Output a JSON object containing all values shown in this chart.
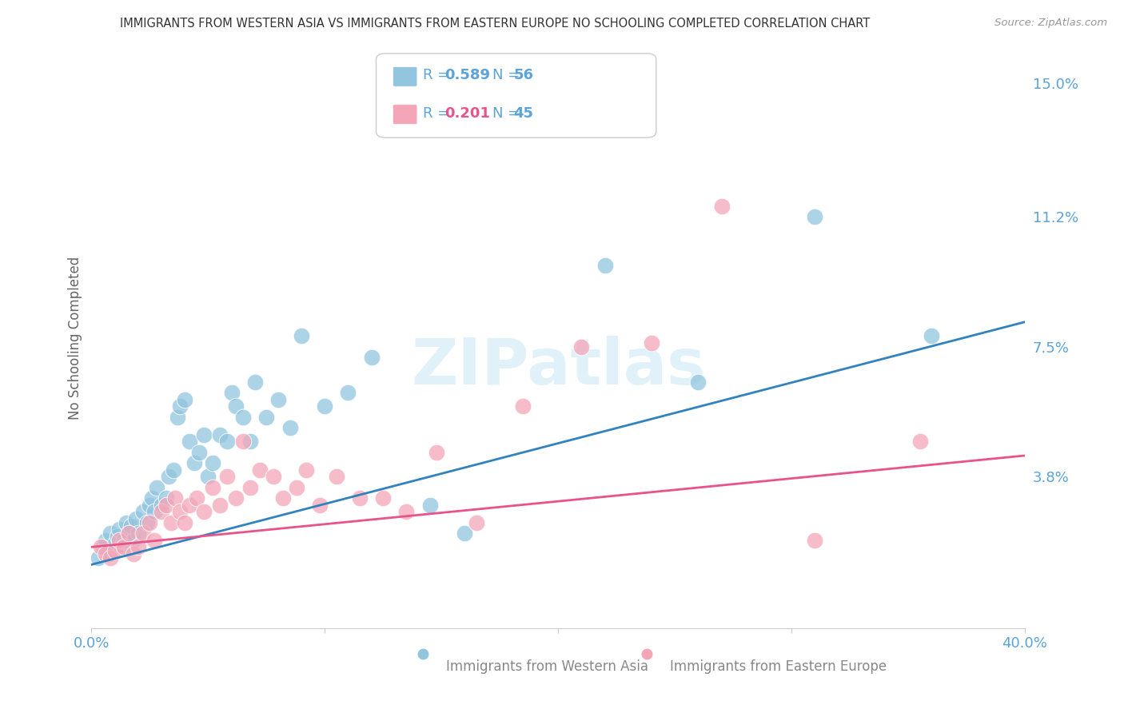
{
  "title": "IMMIGRANTS FROM WESTERN ASIA VS IMMIGRANTS FROM EASTERN EUROPE NO SCHOOLING COMPLETED CORRELATION CHART",
  "source": "Source: ZipAtlas.com",
  "ylabel": "No Schooling Completed",
  "ytick_positions": [
    0.0,
    0.038,
    0.075,
    0.112,
    0.15
  ],
  "ytick_labels": [
    "",
    "3.8%",
    "7.5%",
    "11.2%",
    "15.0%"
  ],
  "xticks": [
    0.0,
    0.1,
    0.2,
    0.3,
    0.4
  ],
  "xlim": [
    0.0,
    0.4
  ],
  "ylim": [
    -0.005,
    0.16
  ],
  "legend_r1": "R = 0.589",
  "legend_n1": "N = 56",
  "legend_r2": "R = 0.201",
  "legend_n2": "N = 45",
  "watermark": "ZIPatlas",
  "color_blue": "#92c5de",
  "color_pink": "#f4a6b8",
  "line_color_blue": "#3182bd",
  "line_color_pink": "#e8538a",
  "background_color": "#ffffff",
  "grid_color": "#d0d0d0",
  "title_color": "#333333",
  "axis_label_color": "#5ba3d9",
  "legend_text_color": "#555555",
  "legend_r_color": "#5ba3d9",
  "legend_n_color": "#5ba3d9",
  "blue_scatter_x": [
    0.003,
    0.005,
    0.006,
    0.007,
    0.008,
    0.009,
    0.01,
    0.011,
    0.012,
    0.013,
    0.014,
    0.015,
    0.016,
    0.017,
    0.018,
    0.019,
    0.02,
    0.022,
    0.024,
    0.025,
    0.026,
    0.027,
    0.028,
    0.03,
    0.032,
    0.033,
    0.035,
    0.037,
    0.038,
    0.04,
    0.042,
    0.044,
    0.046,
    0.048,
    0.05,
    0.052,
    0.055,
    0.058,
    0.06,
    0.062,
    0.065,
    0.068,
    0.07,
    0.075,
    0.08,
    0.085,
    0.09,
    0.1,
    0.11,
    0.12,
    0.145,
    0.16,
    0.22,
    0.26,
    0.31,
    0.36
  ],
  "blue_scatter_y": [
    0.015,
    0.018,
    0.02,
    0.016,
    0.022,
    0.017,
    0.019,
    0.021,
    0.023,
    0.018,
    0.02,
    0.025,
    0.022,
    0.024,
    0.02,
    0.026,
    0.022,
    0.028,
    0.025,
    0.03,
    0.032,
    0.028,
    0.035,
    0.03,
    0.032,
    0.038,
    0.04,
    0.055,
    0.058,
    0.06,
    0.048,
    0.042,
    0.045,
    0.05,
    0.038,
    0.042,
    0.05,
    0.048,
    0.062,
    0.058,
    0.055,
    0.048,
    0.065,
    0.055,
    0.06,
    0.052,
    0.078,
    0.058,
    0.062,
    0.072,
    0.03,
    0.022,
    0.098,
    0.065,
    0.112,
    0.078
  ],
  "pink_scatter_x": [
    0.004,
    0.006,
    0.008,
    0.01,
    0.012,
    0.014,
    0.016,
    0.018,
    0.02,
    0.022,
    0.025,
    0.027,
    0.03,
    0.032,
    0.034,
    0.036,
    0.038,
    0.04,
    0.042,
    0.045,
    0.048,
    0.052,
    0.055,
    0.058,
    0.062,
    0.065,
    0.068,
    0.072,
    0.078,
    0.082,
    0.088,
    0.092,
    0.098,
    0.105,
    0.115,
    0.125,
    0.135,
    0.148,
    0.165,
    0.185,
    0.21,
    0.24,
    0.27,
    0.31,
    0.355
  ],
  "pink_scatter_y": [
    0.018,
    0.016,
    0.015,
    0.017,
    0.02,
    0.018,
    0.022,
    0.016,
    0.018,
    0.022,
    0.025,
    0.02,
    0.028,
    0.03,
    0.025,
    0.032,
    0.028,
    0.025,
    0.03,
    0.032,
    0.028,
    0.035,
    0.03,
    0.038,
    0.032,
    0.048,
    0.035,
    0.04,
    0.038,
    0.032,
    0.035,
    0.04,
    0.03,
    0.038,
    0.032,
    0.032,
    0.028,
    0.045,
    0.025,
    0.058,
    0.075,
    0.076,
    0.115,
    0.02,
    0.048
  ],
  "blue_line_x": [
    0.0,
    0.4
  ],
  "blue_line_y": [
    0.013,
    0.082
  ],
  "pink_line_x": [
    0.0,
    0.4
  ],
  "pink_line_y": [
    0.018,
    0.044
  ]
}
